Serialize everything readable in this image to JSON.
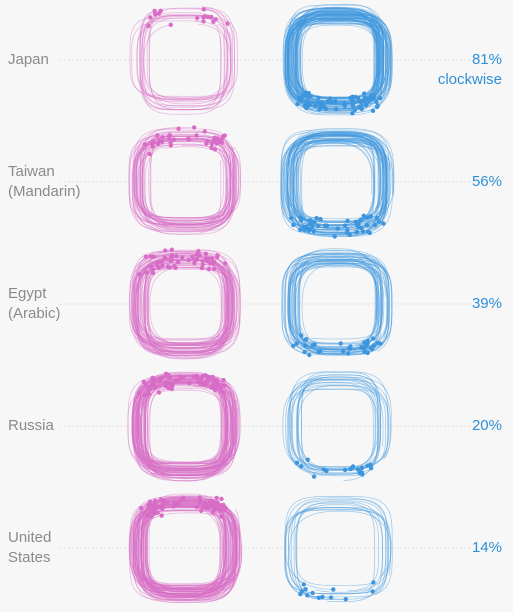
{
  "colors": {
    "counterclockwise": "#d86cc6",
    "clockwise": "#3d96de",
    "country_label": "#8a8a8a",
    "percent_label": "#2f8fd6"
  },
  "chart_data": {
    "type": "small-multiples",
    "rows": [
      {
        "country": "Japan",
        "clockwise_pct": 81,
        "label": "81%\nclockwise"
      },
      {
        "country": "Taiwan\n(Mandarin)",
        "clockwise_pct": 56,
        "label": "56%"
      },
      {
        "country": "Egypt\n(Arabic)",
        "clockwise_pct": 39,
        "label": "39%"
      },
      {
        "country": "Russia",
        "clockwise_pct": 20,
        "label": "20%"
      },
      {
        "country": "United\nStates",
        "clockwise_pct": 14,
        "label": "14%"
      }
    ]
  }
}
